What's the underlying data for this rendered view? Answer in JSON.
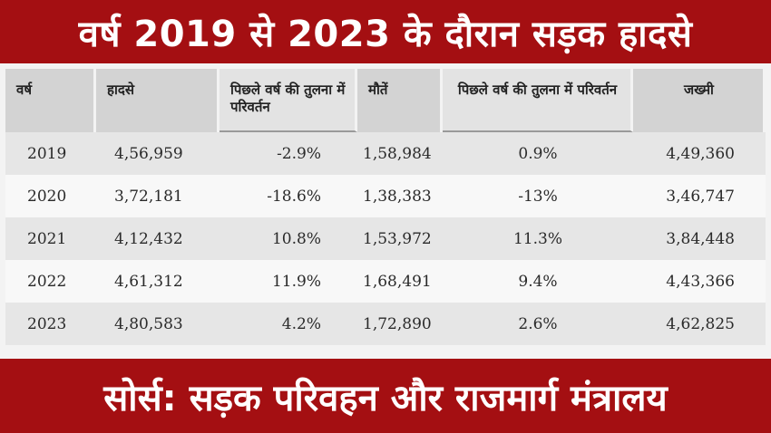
{
  "title": "वर्ष 2019 से 2023 के दौरान सड़क हादसे",
  "table": {
    "headers": [
      "वर्ष",
      "हादसे",
      "पिछले वर्ष की तुलना में परिवर्तन",
      "मौतें",
      "पिछले वर्ष की तुलना में परिवर्तन",
      "जख्मी"
    ],
    "rows": [
      [
        "2019",
        "4,56,959",
        "-2.9%",
        "1,58,984",
        "0.9%",
        "4,49,360"
      ],
      [
        "2020",
        "3,72,181",
        "-18.6%",
        "1,38,383",
        "-13%",
        "3,46,747"
      ],
      [
        "2021",
        "4,12,432",
        "10.8%",
        "1,53,972",
        "11.3%",
        "3,84,448"
      ],
      [
        "2022",
        "4,61,312",
        "11.9%",
        "1,68,491",
        "9.4%",
        "4,43,366"
      ],
      [
        "2023",
        "4,80,583",
        "4.2%",
        "1,72,890",
        "2.6%",
        "4,62,825"
      ]
    ]
  },
  "source": "सोर्स: सड़क परिवहन और राजमार्ग मंत्रालय",
  "colors": {
    "banner": "#a40f12",
    "header": "#d3d3d3",
    "row_alt": "#e6e6e6"
  }
}
